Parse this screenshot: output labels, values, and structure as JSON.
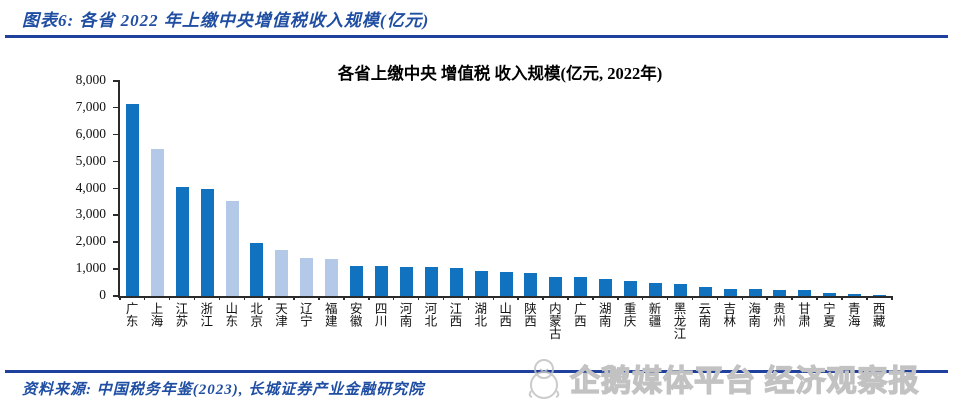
{
  "header": {
    "figure_label": "图表6:  各省 2022 年上缴中央增值税收入规模(亿元)"
  },
  "chart_data": {
    "type": "bar",
    "title": "各省上缴中央 增值税 收入规模(亿元, 2022年)",
    "categories": [
      "广东",
      "上海",
      "江苏",
      "浙江",
      "山东",
      "北京",
      "天津",
      "辽宁",
      "福建",
      "安徽",
      "四川",
      "河南",
      "河北",
      "江西",
      "湖北",
      "山西",
      "陕西",
      "内蒙古",
      "广西",
      "湖南",
      "重庆",
      "新疆",
      "黑龙江",
      "云南",
      "吉林",
      "海南",
      "贵州",
      "甘肃",
      "宁夏",
      "青海",
      "西藏"
    ],
    "values": [
      7150,
      5480,
      4060,
      3980,
      3550,
      1990,
      1700,
      1400,
      1380,
      1110,
      1100,
      1080,
      1070,
      1030,
      940,
      890,
      870,
      720,
      690,
      630,
      550,
      480,
      440,
      350,
      270,
      260,
      240,
      230,
      115,
      70,
      30
    ],
    "light_indices": [
      1,
      4,
      6,
      7,
      8
    ],
    "ylim": [
      0,
      8000
    ],
    "ytick_step": 1000,
    "ytick_labels": [
      "0",
      "1,000",
      "2,000",
      "3,000",
      "4,000",
      "5,000",
      "6,000",
      "7,000",
      "8,000"
    ],
    "grid": "off",
    "legend": "none",
    "colors": {
      "primary": "#1172C0",
      "secondary": "#B4C9E8",
      "axis": "#2b2b2b"
    }
  },
  "footer": {
    "source": "资料来源: 中国税务年鉴(2023), 长城证券产业金融研究院"
  },
  "watermark": {
    "icon": "penguin-icon",
    "text": "企鹅媒体平台 经济观察报"
  }
}
